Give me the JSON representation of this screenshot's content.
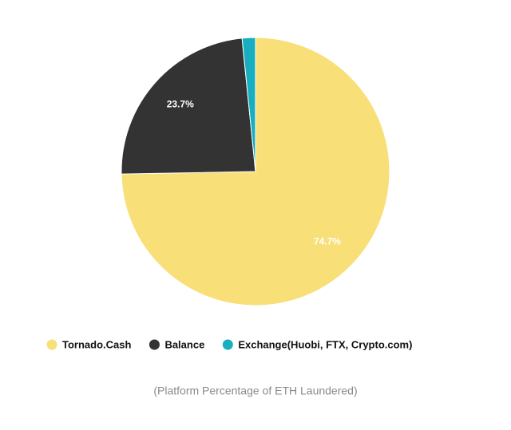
{
  "chart_data": {
    "type": "pie",
    "categories": [
      "Tornado.Cash",
      "Balance",
      "Exchange(Huobi, FTX, Crypto.com)"
    ],
    "values": [
      74.7,
      23.7,
      1.6
    ],
    "value_labels": [
      "74.7%",
      "23.7%",
      null
    ],
    "colors": [
      "#f8df78",
      "#333333",
      "#17aec0"
    ],
    "caption": "(Platform Percentage of ETH Laundered)"
  }
}
